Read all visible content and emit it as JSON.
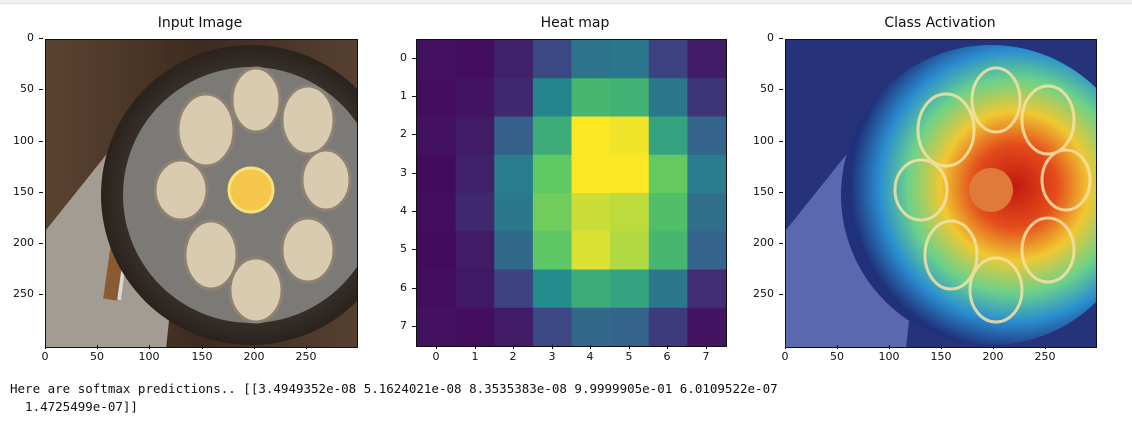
{
  "panels": [
    {
      "title": "Input Image",
      "yticks": [
        "0",
        "50",
        "100",
        "150",
        "200",
        "250"
      ],
      "xticks": [
        "0",
        "50",
        "100",
        "150",
        "200",
        "250"
      ]
    },
    {
      "title": "Heat map",
      "yticks": [
        "0",
        "1",
        "2",
        "3",
        "4",
        "5",
        "6",
        "7"
      ],
      "xticks": [
        "0",
        "1",
        "2",
        "3",
        "4",
        "5",
        "6",
        "7"
      ]
    },
    {
      "title": "Class Activation",
      "yticks": [
        "0",
        "50",
        "100",
        "150",
        "200",
        "250"
      ],
      "xticks": [
        "0",
        "50",
        "100",
        "150",
        "200",
        "250"
      ]
    }
  ],
  "output": {
    "line1": "Here are softmax predictions.. [[3.4949352e-08 5.1624021e-08 8.3535383e-08 9.9999905e-01 6.0109522e-07",
    "line2": "  1.4725499e-07]]"
  },
  "heatmap": {
    "colormap": "viridis",
    "values": [
      [
        0.05,
        0.04,
        0.1,
        0.22,
        0.38,
        0.4,
        0.2,
        0.08
      ],
      [
        0.04,
        0.06,
        0.12,
        0.45,
        0.66,
        0.64,
        0.4,
        0.16
      ],
      [
        0.05,
        0.08,
        0.3,
        0.62,
        1.0,
        0.98,
        0.58,
        0.32
      ],
      [
        0.03,
        0.1,
        0.42,
        0.75,
        1.0,
        1.0,
        0.76,
        0.42
      ],
      [
        0.04,
        0.12,
        0.4,
        0.78,
        0.92,
        0.9,
        0.7,
        0.36
      ],
      [
        0.03,
        0.08,
        0.34,
        0.74,
        0.95,
        0.88,
        0.66,
        0.32
      ],
      [
        0.04,
        0.07,
        0.2,
        0.48,
        0.62,
        0.58,
        0.4,
        0.14
      ],
      [
        0.05,
        0.04,
        0.08,
        0.22,
        0.34,
        0.32,
        0.18,
        0.06
      ]
    ]
  }
}
